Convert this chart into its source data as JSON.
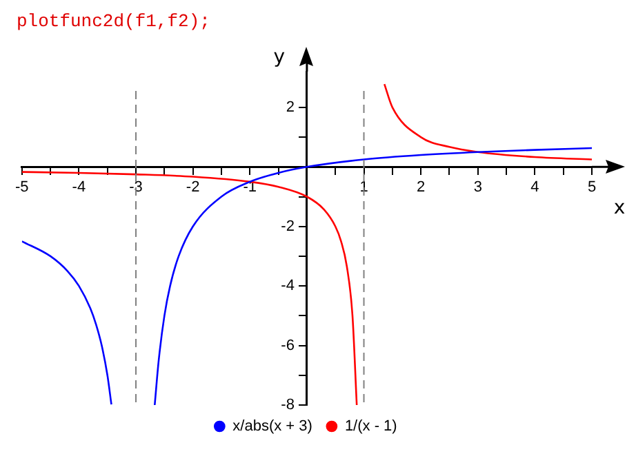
{
  "chart_data": {
    "type": "line",
    "annotations": [
      "plotfunc2d(f1,f2);"
    ],
    "xlabel": "x",
    "ylabel": "y",
    "xlim": [
      -5,
      5
    ],
    "ylim": [
      -8,
      3.2
    ],
    "xticks": [
      -5,
      {
        "value": -4.5,
        "label": null
      },
      -4,
      {
        "value": -3.5,
        "label": null
      },
      -3,
      {
        "value": -2.5,
        "label": null
      },
      -2,
      {
        "value": -1.5,
        "label": null
      },
      -1,
      {
        "value": -0.5,
        "label": null
      },
      {
        "value": 0.5,
        "label": null
      },
      1,
      {
        "value": 1.5,
        "label": null
      },
      2,
      {
        "value": 2.5,
        "label": null
      },
      3,
      {
        "value": 3.5,
        "label": null
      },
      4,
      {
        "value": 4.5,
        "label": null
      },
      5
    ],
    "yticks": [
      2,
      {
        "value": 1,
        "label": null
      },
      {
        "value": -1,
        "label": null
      },
      -2,
      {
        "value": -3,
        "label": null
      },
      -4,
      {
        "value": -5,
        "label": null
      },
      -6,
      {
        "value": -7,
        "label": null
      },
      -8
    ],
    "grid": false,
    "legend": "bottom",
    "marker": "none",
    "line_style": "solid",
    "ref_lines": [
      {
        "axis": "x",
        "value": -3,
        "color": "#808080",
        "line_style": "dashed"
      },
      {
        "axis": "x",
        "value": 1,
        "color": "#808080",
        "line_style": "dashed"
      }
    ],
    "series": [
      {
        "name": "x/abs(x + 3)",
        "color": "#0000ff",
        "x": [
          -5,
          -4.5,
          -4.2,
          -4,
          -3.8,
          -3.7,
          -3.6,
          -3.5,
          -3.43,
          -3,
          -2.67,
          -2.6,
          -2.5,
          -2.4,
          -2.25,
          -2,
          -1.5,
          -1,
          -0.5,
          0,
          1,
          2,
          3,
          4,
          5
        ],
        "values": [
          -2.5,
          -3,
          -3.5,
          -4,
          -4.75,
          -5.29,
          -6,
          -7,
          -7.98,
          null,
          -8,
          -6.5,
          -5,
          -4,
          -3,
          -2,
          -1,
          -0.5,
          -0.2,
          0,
          0.25,
          0.4,
          0.5,
          0.57,
          0.63
        ]
      },
      {
        "name": "1/(x - 1)",
        "color": "#ff0000",
        "x": [
          -5,
          -4,
          -3,
          -2,
          -1,
          -0.5,
          0,
          0.3,
          0.5,
          0.6,
          0.7,
          0.8,
          0.875,
          1,
          1.36,
          1.5,
          2,
          2.5,
          3,
          4,
          5
        ],
        "values": [
          -0.17,
          -0.2,
          -0.25,
          -0.33,
          -0.5,
          -0.67,
          -1,
          -1.43,
          -2,
          -2.5,
          -3.33,
          -5,
          -8,
          null,
          2.78,
          2,
          1,
          0.67,
          0.5,
          0.33,
          0.25
        ]
      }
    ]
  }
}
